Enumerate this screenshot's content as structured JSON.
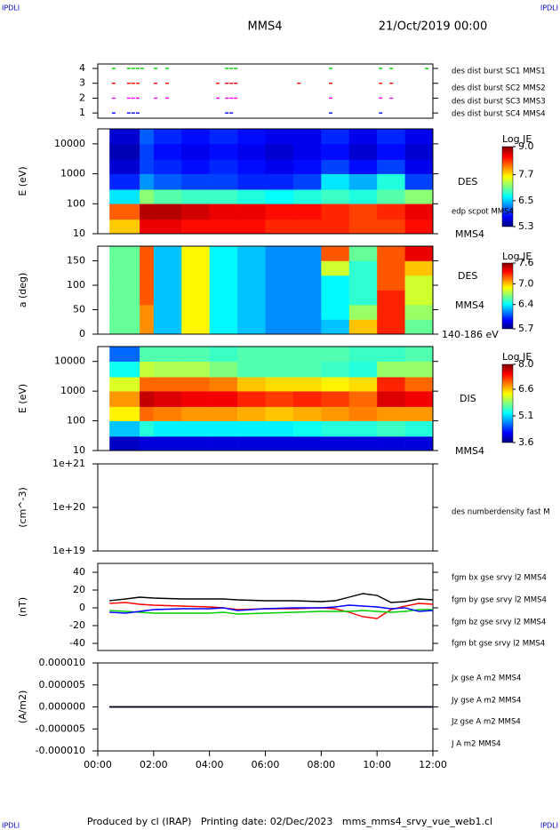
{
  "header": {
    "title": "MMS4",
    "date": "21/Oct/2019 00:00",
    "corner_labels": [
      "IPDLI",
      "IPDLI",
      "IPDLI",
      "IPDLI"
    ]
  },
  "footer": "Produced by cl (IRAP)   Printing date: 02/Dec/2023   mms_mms4_srvy_vue_web1.cl",
  "chart_data": [
    {
      "type": "event",
      "xlim": [
        0,
        12
      ],
      "ylim": [
        0.65,
        4.3
      ],
      "yticks": [
        1,
        2,
        3,
        4
      ],
      "series": [
        {
          "name": "des dist burst SC1 MMS1",
          "color": "#0000ff",
          "x": [
            0.57,
            1.11,
            1.27,
            1.43,
            4.62,
            4.78,
            8.34,
            10.13
          ],
          "values": [
            1,
            1,
            1,
            1,
            1,
            1,
            1,
            1
          ]
        },
        {
          "name": "des dist burst SC2 MMS2",
          "color": "#ff00ff",
          "x": [
            0.57,
            1.11,
            1.27,
            1.43,
            2.07,
            2.48,
            4.3,
            4.62,
            4.78,
            4.94,
            8.34,
            10.13,
            10.51
          ],
          "values": [
            2,
            2,
            2,
            2,
            2,
            2,
            2,
            2,
            2,
            2,
            2,
            2,
            2
          ]
        },
        {
          "name": "des dist burst SC3 MMS3",
          "color": "#ff0000",
          "x": [
            0.57,
            1.11,
            1.27,
            1.43,
            2.07,
            2.48,
            4.3,
            4.62,
            4.78,
            4.94,
            7.2,
            8.34,
            10.13,
            10.51
          ],
          "values": [
            3,
            3,
            3,
            3,
            3,
            3,
            3,
            3,
            3,
            3,
            3,
            3,
            3,
            3
          ]
        },
        {
          "name": "des dist burst SC4 MMS4",
          "color": "#00cc00",
          "x": [
            0.57,
            1.11,
            1.27,
            1.43,
            1.59,
            2.07,
            2.48,
            4.62,
            4.78,
            4.94,
            8.34,
            10.13,
            10.51,
            11.78
          ],
          "values": [
            4,
            4,
            4,
            4,
            4,
            4,
            4,
            4,
            4,
            4,
            4,
            4,
            4,
            4
          ]
        }
      ]
    },
    {
      "type": "heatmap",
      "ylabel": "E (eV)",
      "ylog": true,
      "xlim": [
        0,
        12
      ],
      "ylim": [
        10,
        31623
      ],
      "yticks": [
        10,
        100,
        1000,
        10000
      ],
      "x_edges": [
        0.42,
        1.5,
        2,
        3,
        4,
        5,
        6,
        7,
        8,
        9,
        10,
        11,
        12
      ],
      "y_edges": [
        10,
        30,
        100,
        300,
        1000,
        3000,
        10000,
        31623
      ],
      "z": [
        [
          7.8,
          8.6,
          8.6,
          8.5,
          8.5,
          8.5,
          8.4,
          8.4,
          8.4,
          8.3,
          8.3,
          8.5
        ],
        [
          8.2,
          8.8,
          8.8,
          8.7,
          8.6,
          8.6,
          8.5,
          8.5,
          8.4,
          8.3,
          8.4,
          8.6
        ],
        [
          6.6,
          7.2,
          7.0,
          6.9,
          6.9,
          6.8,
          6.7,
          6.8,
          6.9,
          6.8,
          7.0,
          7.2
        ],
        [
          5.9,
          6.3,
          6.1,
          6.0,
          6.0,
          5.9,
          5.9,
          6.0,
          6.6,
          6.4,
          6.8,
          6.0
        ],
        [
          5.6,
          6.0,
          5.9,
          5.8,
          5.9,
          5.8,
          5.7,
          5.8,
          6.0,
          5.8,
          6.0,
          5.7
        ],
        [
          5.5,
          6.0,
          5.8,
          5.7,
          5.8,
          5.7,
          5.6,
          5.7,
          5.8,
          5.6,
          5.8,
          5.6
        ],
        [
          5.6,
          6.1,
          5.9,
          5.8,
          5.9,
          5.8,
          5.7,
          5.7,
          5.9,
          5.7,
          5.9,
          5.7
        ]
      ],
      "colorbar_title": "Log JE",
      "clim": [
        5.3,
        9
      ],
      "cticks": [
        5.3,
        6.5,
        7.7,
        {
          "value": 9,
          "label": "9.0"
        }
      ],
      "labels": [
        "DES",
        "edp scpot MMS4",
        "MMS4"
      ]
    },
    {
      "type": "heatmap",
      "ylabel": "a (deg)",
      "ylog": false,
      "xlim": [
        0,
        12
      ],
      "ylim": [
        0,
        180
      ],
      "yticks": [
        0,
        50,
        100,
        150
      ],
      "x_edges": [
        0.42,
        1.5,
        2,
        3,
        4,
        5,
        6,
        7,
        8,
        9,
        10,
        11,
        12
      ],
      "y_edges": [
        0,
        30,
        60,
        90,
        120,
        150,
        180
      ],
      "z": [
        [
          6.6,
          7.1,
          6.3,
          6.9,
          6.4,
          6.3,
          6.2,
          6.2,
          6.3,
          7.0,
          7.3,
          6.6
        ],
        [
          6.6,
          7.1,
          6.3,
          6.9,
          6.4,
          6.3,
          6.2,
          6.2,
          6.4,
          6.7,
          7.3,
          6.7
        ],
        [
          6.6,
          7.2,
          6.3,
          6.9,
          6.4,
          6.3,
          6.2,
          6.2,
          6.4,
          6.5,
          7.3,
          6.8
        ],
        [
          6.6,
          7.2,
          6.3,
          6.9,
          6.4,
          6.3,
          6.2,
          6.2,
          6.4,
          6.5,
          7.2,
          6.8
        ],
        [
          6.6,
          7.2,
          6.3,
          6.9,
          6.4,
          6.3,
          6.2,
          6.2,
          6.8,
          6.5,
          7.2,
          7.0
        ],
        [
          6.6,
          7.2,
          6.3,
          6.9,
          6.4,
          6.3,
          6.2,
          6.2,
          7.2,
          6.6,
          7.2,
          7.4
        ]
      ],
      "colorbar_title": "Log JE",
      "clim": [
        5.7,
        7.6
      ],
      "cticks": [
        5.7,
        6.4,
        {
          "value": 7,
          "label": "7.0"
        },
        7.6
      ],
      "labels": [
        "DES",
        "MMS4",
        "140-186 eV"
      ]
    },
    {
      "type": "heatmap",
      "ylabel": "E (eV)",
      "ylog": true,
      "xlim": [
        0,
        12
      ],
      "ylim": [
        10,
        31623
      ],
      "yticks": [
        10,
        100,
        1000,
        10000
      ],
      "x_edges": [
        0.42,
        1.5,
        2,
        3,
        4,
        5,
        6,
        7,
        8,
        9,
        10,
        11,
        12
      ],
      "y_edges": [
        10,
        30,
        100,
        300,
        1000,
        3000,
        10000,
        31623
      ],
      "z": [
        [
          3.9,
          4.0,
          4.0,
          4.0,
          4.0,
          4.0,
          4.0,
          4.0,
          4.0,
          4.0,
          4.0,
          4.0
        ],
        [
          5.0,
          5.4,
          5.2,
          5.2,
          5.2,
          5.2,
          5.2,
          5.3,
          5.4,
          5.4,
          5.5,
          5.4
        ],
        [
          6.4,
          7.0,
          6.9,
          6.8,
          6.8,
          6.7,
          6.6,
          6.7,
          6.8,
          6.9,
          6.8,
          6.8
        ],
        [
          6.8,
          7.7,
          7.6,
          7.5,
          7.5,
          7.3,
          7.2,
          7.3,
          7.2,
          7.0,
          7.6,
          7.5
        ],
        [
          6.2,
          7.0,
          7.0,
          7.0,
          6.9,
          6.6,
          6.5,
          6.5,
          6.4,
          6.5,
          7.3,
          7.0
        ],
        [
          5.3,
          6.1,
          6.0,
          6.0,
          5.8,
          5.6,
          5.6,
          5.6,
          5.5,
          5.4,
          5.9,
          5.9
        ],
        [
          4.6,
          5.6,
          5.6,
          5.6,
          5.5,
          5.6,
          5.6,
          5.6,
          5.6,
          5.5,
          5.5,
          5.6
        ]
      ],
      "colorbar_title": "Log JE",
      "clim": [
        3.6,
        8
      ],
      "cticks": [
        3.6,
        5.1,
        6.6,
        {
          "value": 8,
          "label": "8.0"
        }
      ],
      "labels": [
        "DIS",
        "MMS4"
      ]
    },
    {
      "type": "line",
      "ylabel": "(cm^-3)",
      "ylog": true,
      "xlim": [
        0,
        12
      ],
      "ylim": [
        1e+19,
        1e+21
      ],
      "yticks": [
        {
          "value": 1e+19,
          "label": "1e+19"
        },
        {
          "value": 1e+20,
          "label": "1e+20"
        },
        {
          "value": 1e+21,
          "label": "1e+21"
        }
      ],
      "series": [
        {
          "name": "des numberdensity fast M",
          "color": "#000000",
          "x": [],
          "values": []
        }
      ]
    },
    {
      "type": "line",
      "ylabel": "(nT)",
      "ylog": false,
      "xlim": [
        0,
        12
      ],
      "ylim": [
        -48,
        50
      ],
      "yticks": [
        -40,
        -20,
        0,
        20,
        40
      ],
      "series": [
        {
          "name": "fgm bx gse srvy l2 MMS4",
          "color": "#ff0000",
          "x": [
            0.42,
            1,
            1.5,
            2,
            3,
            4,
            4.5,
            5,
            6,
            7,
            8,
            8.5,
            9,
            9.5,
            10,
            10.5,
            11,
            11.5,
            12
          ],
          "values": [
            5,
            6,
            4,
            3,
            2,
            1,
            0,
            -2,
            -1,
            -1,
            0,
            -1,
            -5,
            -10,
            -12,
            -2,
            2,
            5,
            4
          ]
        },
        {
          "name": "fgm by gse srvy l2 MMS4",
          "color": "#00cc00",
          "x": [
            0.42,
            1,
            1.5,
            2,
            3,
            4,
            4.5,
            5,
            6,
            7,
            8,
            8.5,
            9,
            9.5,
            10,
            10.5,
            11,
            11.5,
            12
          ],
          "values": [
            -3,
            -4,
            -5,
            -6,
            -6,
            -6,
            -5,
            -7,
            -6,
            -5,
            -4,
            -4,
            -4,
            -3,
            -4,
            -5,
            -4,
            -2,
            -2
          ]
        },
        {
          "name": "fgm bz gse srvy l2 MMS4",
          "color": "#0000ff",
          "x": [
            0.42,
            1,
            1.5,
            2,
            3,
            4,
            4.5,
            5,
            6,
            7,
            8,
            8.5,
            9,
            9.5,
            10,
            10.5,
            11,
            11.5,
            12
          ],
          "values": [
            -5,
            -6,
            -4,
            -2,
            -1,
            -1,
            0,
            -3,
            -1,
            0,
            0,
            1,
            3,
            2,
            1,
            -1,
            0,
            -4,
            -3
          ]
        },
        {
          "name": "fgm bt gse srvy l2 MMS4",
          "color": "#000000",
          "x": [
            0.42,
            1,
            1.5,
            2,
            3,
            4,
            4.5,
            5,
            6,
            7,
            8,
            8.5,
            9,
            9.5,
            10,
            10.5,
            11,
            11.5,
            12
          ],
          "values": [
            8,
            10,
            12,
            11,
            10,
            10,
            10,
            9,
            8,
            8,
            7,
            8,
            12,
            16,
            14,
            6,
            7,
            10,
            9
          ]
        }
      ]
    },
    {
      "type": "line",
      "ylabel": "(A/m2)",
      "ylog": false,
      "xlim": [
        0,
        12
      ],
      "ylim": [
        -1e-05,
        1e-05
      ],
      "yticks": [
        {
          "value": -1e-05,
          "label": "-0.000010"
        },
        {
          "value": -5e-06,
          "label": "-0.000005"
        },
        {
          "value": 0,
          "label": "0.000000"
        },
        {
          "value": 5e-06,
          "label": "0.000005"
        },
        {
          "value": 1e-05,
          "label": "0.000010"
        }
      ],
      "xticks": [
        {
          "value": 0,
          "label": "00:00"
        },
        {
          "value": 2,
          "label": "02:00"
        },
        {
          "value": 4,
          "label": "04:00"
        },
        {
          "value": 6,
          "label": "06:00"
        },
        {
          "value": 8,
          "label": "08:00"
        },
        {
          "value": 10,
          "label": "10:00"
        },
        {
          "value": 12,
          "label": "12:00"
        }
      ],
      "series": [
        {
          "name": "Jx gse A m2 MMS4",
          "color": "#ff0000",
          "x": [
            0.42,
            12
          ],
          "values": [
            0,
            0
          ]
        },
        {
          "name": "Jy gse A m2 MMS4",
          "color": "#00cc00",
          "x": [
            0.42,
            12
          ],
          "values": [
            0,
            0
          ]
        },
        {
          "name": "Jz gse A m2 MMS4",
          "color": "#0000ff",
          "x": [
            0.42,
            12
          ],
          "values": [
            0,
            0
          ]
        },
        {
          "name": "J A m2 MMS4",
          "color": "#000000",
          "x": [
            0.42,
            12
          ],
          "values": [
            0,
            0
          ]
        }
      ]
    }
  ]
}
